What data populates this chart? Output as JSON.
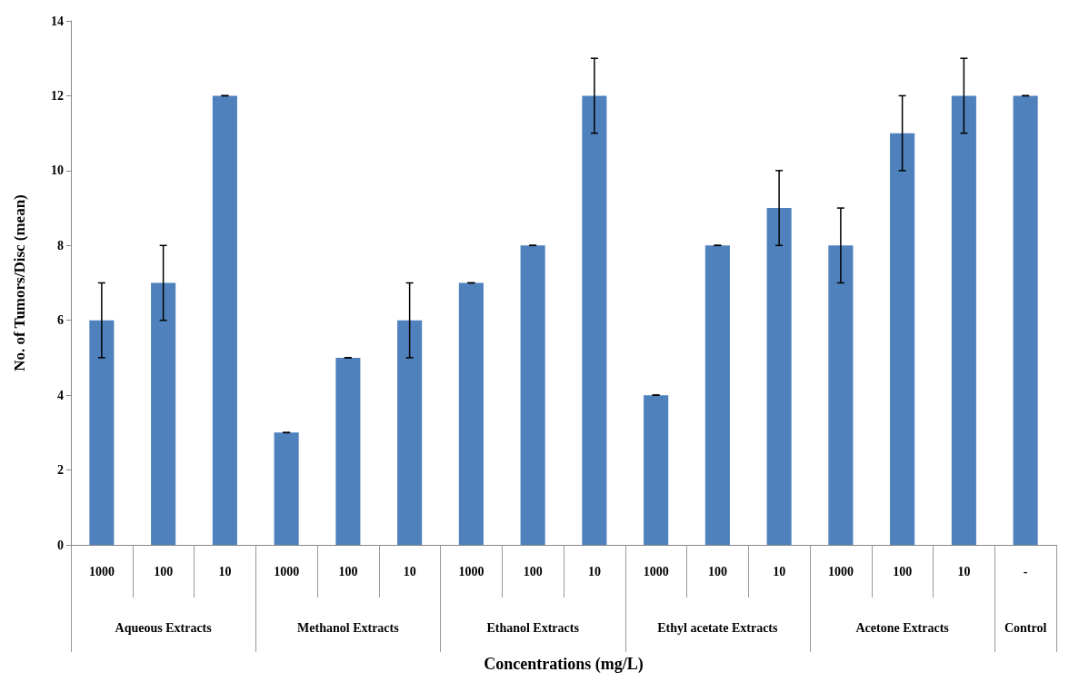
{
  "chart_data": {
    "type": "bar",
    "xlabel": "Concentrations (mg/L)",
    "ylabel": "No. of Tumors/Disc (mean)",
    "categories": [
      "1000",
      "100",
      "10",
      "1000",
      "100",
      "10",
      "1000",
      "100",
      "10",
      "1000",
      "100",
      "10",
      "1000",
      "100",
      "10",
      "-"
    ],
    "values": [
      6,
      7,
      12,
      3,
      5,
      6,
      7,
      8,
      12,
      4,
      8,
      9,
      8,
      11,
      12,
      12
    ],
    "errors": [
      1,
      1,
      0,
      0,
      0,
      1,
      0,
      0,
      1,
      0,
      0,
      1,
      1,
      1,
      1,
      0
    ],
    "color": "#4f81bd",
    "annotations": [
      "Aqueous Extracts",
      "Methanol Extracts",
      "Ethanol Extracts",
      "Ethyl acetate Extracts",
      "Acetone Extracts",
      "Control"
    ],
    "ylim": [
      0,
      14
    ],
    "yticks": [
      0,
      2,
      4,
      6,
      8,
      10,
      12,
      14
    ],
    "grid": false
  }
}
